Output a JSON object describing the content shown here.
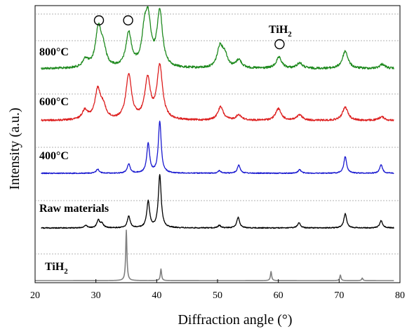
{
  "chart_data": {
    "type": "line",
    "xlabel": "Diffraction angle (°)",
    "ylabel": "Intensity (a.u.)",
    "xlim": [
      20,
      80
    ],
    "xticks": [
      "20",
      "30",
      "40",
      "50",
      "60",
      "70",
      "80"
    ],
    "grid": "dashed horizontal separators between stacked series",
    "legend": "inline series labels at left of each trace",
    "series": [
      {
        "name": "800°C",
        "color": "#1f8a1f",
        "peaks": [
          [
            28.3,
            0.15
          ],
          [
            30.4,
            0.7
          ],
          [
            31.2,
            0.32
          ],
          [
            35.4,
            0.62
          ],
          [
            38.0,
            0.55
          ],
          [
            38.6,
            0.75
          ],
          [
            40.5,
            1.0
          ],
          [
            50.4,
            0.38
          ],
          [
            51.2,
            0.22
          ],
          [
            53.5,
            0.15
          ],
          [
            60.1,
            0.2
          ],
          [
            63.5,
            0.1
          ],
          [
            71.0,
            0.32
          ],
          [
            77.1,
            0.08
          ]
        ]
      },
      {
        "name": "600°C",
        "color": "#dd1f1f",
        "peaks": [
          [
            28.2,
            0.18
          ],
          [
            30.3,
            0.55
          ],
          [
            31.2,
            0.22
          ],
          [
            35.4,
            0.85
          ],
          [
            38.5,
            0.75
          ],
          [
            40.5,
            1.0
          ],
          [
            50.5,
            0.25
          ],
          [
            53.5,
            0.1
          ],
          [
            60.0,
            0.22
          ],
          [
            63.5,
            0.1
          ],
          [
            71.0,
            0.25
          ],
          [
            77.0,
            0.07
          ]
        ]
      },
      {
        "name": "400°C",
        "color": "#1a1ad0",
        "peaks": [
          [
            30.3,
            0.08
          ],
          [
            35.4,
            0.18
          ],
          [
            38.6,
            0.57
          ],
          [
            40.5,
            1.0
          ],
          [
            50.3,
            0.05
          ],
          [
            53.5,
            0.16
          ],
          [
            63.5,
            0.07
          ],
          [
            71.0,
            0.32
          ],
          [
            76.9,
            0.16
          ]
        ]
      },
      {
        "name": "Raw materials",
        "color": "#000000",
        "peaks": [
          [
            28.3,
            0.05
          ],
          [
            30.4,
            0.15
          ],
          [
            31.0,
            0.08
          ],
          [
            35.4,
            0.22
          ],
          [
            38.6,
            0.5
          ],
          [
            40.5,
            1.0
          ],
          [
            50.3,
            0.05
          ],
          [
            53.4,
            0.2
          ],
          [
            63.4,
            0.1
          ],
          [
            71.0,
            0.27
          ],
          [
            76.9,
            0.14
          ]
        ]
      },
      {
        "name": "TiH2",
        "name_main": "TiH",
        "name_sub": "2",
        "color": "#808080",
        "peaks": [
          [
            35.0,
            1.0
          ],
          [
            40.7,
            0.23
          ],
          [
            58.8,
            0.18
          ],
          [
            70.2,
            0.11
          ],
          [
            73.8,
            0.05
          ]
        ]
      }
    ],
    "annotations": {
      "marker_symbol": "○",
      "marker_positions": [
        30.5,
        35.3,
        60.2
      ],
      "marker_label_main": "TiH",
      "marker_label_sub": "2"
    }
  }
}
